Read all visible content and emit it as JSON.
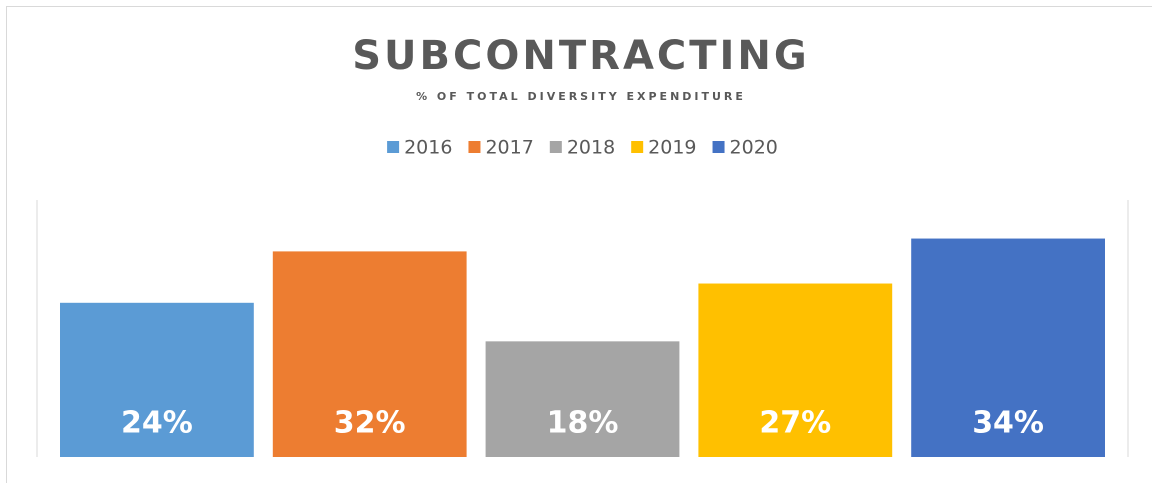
{
  "chart_data": {
    "type": "bar",
    "title": "SUBCONTRACTING",
    "subtitle": "% OF TOTAL DIVERSITY EXPENDITURE",
    "ylim": [
      0,
      40
    ],
    "legend": "top",
    "series": [
      {
        "name": "2016",
        "color": "#5b9bd5",
        "values": [
          24
        ],
        "value_labels": [
          "24%"
        ]
      },
      {
        "name": "2017",
        "color": "#ed7d31",
        "values": [
          32
        ],
        "value_labels": [
          "32%"
        ]
      },
      {
        "name": "2018",
        "color": "#a5a5a5",
        "values": [
          18
        ],
        "value_labels": [
          "18%"
        ]
      },
      {
        "name": "2019",
        "color": "#ffc000",
        "values": [
          27
        ],
        "value_labels": [
          "27%"
        ]
      },
      {
        "name": "2020",
        "color": "#4472c4",
        "values": [
          34
        ],
        "value_labels": [
          "34%"
        ]
      }
    ]
  }
}
